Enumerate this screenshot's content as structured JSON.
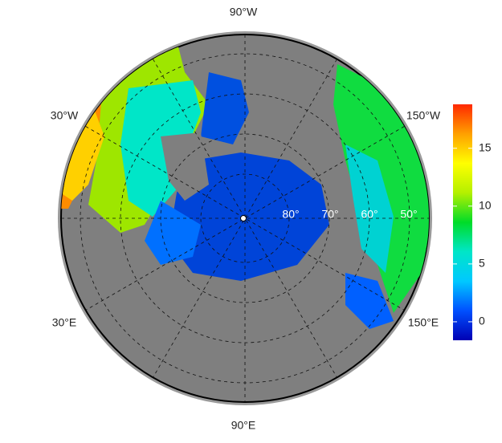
{
  "map": {
    "lon_labels": [
      "90°W",
      "30°W",
      "150°W",
      "30°E",
      "150°E",
      "90°E"
    ],
    "lat_labels": [
      "80°",
      "70°",
      "60°",
      "50°"
    ],
    "colorbar": {
      "lim": [
        -1.6,
        18.8
      ],
      "ticks": [
        0,
        5,
        10,
        15
      ],
      "colors": [
        "#0000b4",
        "#0050ff",
        "#00c8ff",
        "#00e6c8",
        "#00dc28",
        "#b4f000",
        "#ffff00",
        "#ffa000",
        "#ff2800"
      ]
    }
  }
}
